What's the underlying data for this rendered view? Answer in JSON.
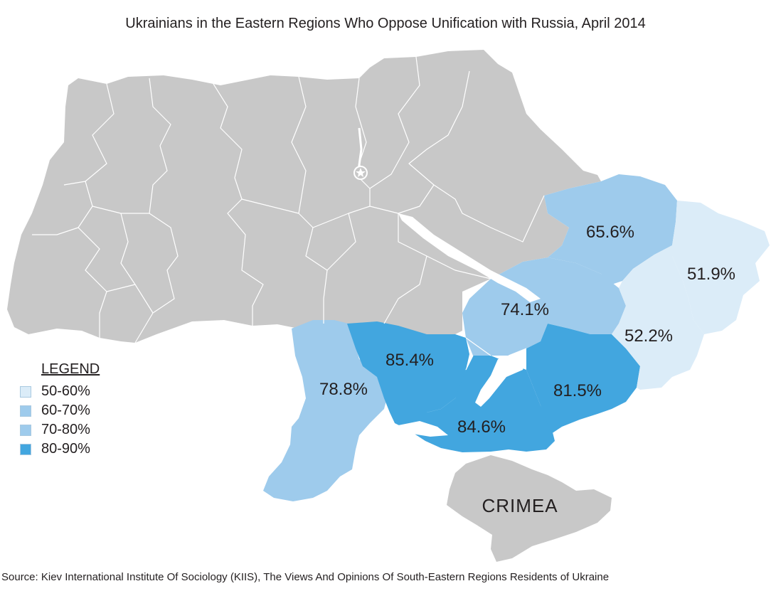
{
  "title": "Ukrainians in the Eastern Regions Who Oppose Unification with Russia, April 2014",
  "legend": {
    "title": "LEGEND",
    "items": [
      {
        "label": "50-60%",
        "color": "#dbecf8"
      },
      {
        "label": "60-70%",
        "color": "#9ecbec"
      },
      {
        "label": "70-80%",
        "color": "#9ecbec"
      },
      {
        "label": "80-90%",
        "color": "#42a6df"
      }
    ]
  },
  "regions": {
    "kharkiv": {
      "value": "65.6%",
      "color": "#9ecbec"
    },
    "luhansk": {
      "value": "51.9%",
      "color": "#dbecf8"
    },
    "donetsk": {
      "value": "52.2%",
      "color": "#dbecf8"
    },
    "dnipro": {
      "value": "74.1%",
      "color": "#9ecbec"
    },
    "mykolaiv": {
      "value": "85.4%",
      "color": "#42a6df"
    },
    "odesa": {
      "value": "78.8%",
      "color": "#9ecbec"
    },
    "kherson": {
      "value": "84.6%",
      "color": "#42a6df"
    },
    "zaporizhzhia": {
      "value": "81.5%",
      "color": "#42a6df"
    },
    "other": {
      "color": "#c8c8c8"
    }
  },
  "crimea_label": "CRIMEA",
  "source": "Source: Kiev International Institute Of Sociology (KIIS), The Views And Opinions Of South-Eastern Regions Residents of Ukraine"
}
